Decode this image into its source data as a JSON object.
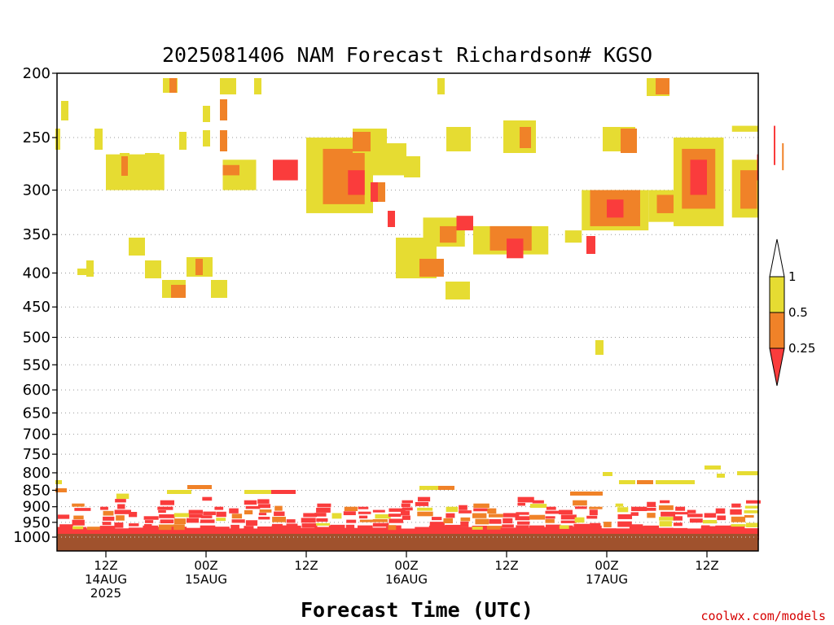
{
  "chart_data": {
    "type": "heatmap",
    "title": "2025081406 NAM Forecast Richardson# KGSO",
    "xlabel": "Forecast Time (UTC)",
    "ylabel": "",
    "y_scale": "pressure (hPa, log-like, inverted)",
    "ylim": [
      1000,
      200
    ],
    "y_ticks": [
      "200",
      "250",
      "300",
      "350",
      "400",
      "450",
      "500",
      "550",
      "600",
      "650",
      "700",
      "750",
      "800",
      "850",
      "900",
      "950",
      "1000"
    ],
    "x_ticks": [
      {
        "time": "2025-08-14T12Z",
        "line1": "12Z",
        "line2": "14AUG",
        "line3": "2025"
      },
      {
        "time": "2025-08-15T00Z",
        "line1": "00Z",
        "line2": "15AUG",
        "line3": ""
      },
      {
        "time": "2025-08-15T12Z",
        "line1": "12Z",
        "line2": "",
        "line3": ""
      },
      {
        "time": "2025-08-16T00Z",
        "line1": "00Z",
        "line2": "16AUG",
        "line3": ""
      },
      {
        "time": "2025-08-16T12Z",
        "line1": "12Z",
        "line2": "",
        "line3": ""
      },
      {
        "time": "2025-08-17T00Z",
        "line1": "00Z",
        "line2": "17AUG",
        "line3": ""
      },
      {
        "time": "2025-08-17T12Z",
        "line1": "12Z",
        "line2": "",
        "line3": ""
      }
    ],
    "grid": "dotted horizontal at pressure ticks",
    "legend": {
      "placement": "right",
      "type": "colorbar",
      "levels": [
        "1",
        "0.5",
        "0.25"
      ],
      "bins": [
        {
          "range": "> 1",
          "color": "#ffffff"
        },
        {
          "range": "0.5 - 1",
          "color": "#e6dc32"
        },
        {
          "range": "0.25 - 0.5",
          "color": "#f08228"
        },
        {
          "range": "< 0.25",
          "color": "#fa3c3c"
        }
      ]
    },
    "ground_color": "#a0522d",
    "colors": {
      "yellow": "#e6dc32",
      "orange": "#f08228",
      "red": "#fa3c3c"
    },
    "regions": [
      {
        "hrs": [
          -18,
          -14.5
        ],
        "p": [
          300,
          265
        ],
        "c": "yellow"
      },
      {
        "hrs": [
          -11,
          -9
        ],
        "p": [
          300,
          270
        ],
        "c": "yellow"
      },
      {
        "hrs": [
          -11,
          -10
        ],
        "p": [
          285,
          275
        ],
        "c": "orange"
      },
      {
        "hrs": [
          -8,
          -6.5
        ],
        "p": [
          290,
          270
        ],
        "c": "red"
      },
      {
        "hrs": [
          -6,
          -2
        ],
        "p": [
          325,
          250
        ],
        "c": "yellow"
      },
      {
        "hrs": [
          -5,
          -2.5
        ],
        "p": [
          315,
          260
        ],
        "c": "orange"
      },
      {
        "hrs": [
          -3.5,
          -2.5
        ],
        "p": [
          305,
          280
        ],
        "c": "red"
      },
      {
        "hrs": [
          -2,
          0
        ],
        "p": [
          285,
          255
        ],
        "c": "yellow"
      },
      {
        "hrs": [
          1,
          3.5
        ],
        "p": [
          365,
          330
        ],
        "c": "yellow"
      },
      {
        "hrs": [
          2,
          3
        ],
        "p": [
          360,
          340
        ],
        "c": "orange"
      },
      {
        "hrs": [
          3,
          4
        ],
        "p": [
          345,
          328
        ],
        "c": "red"
      },
      {
        "hrs": [
          4,
          8.5
        ],
        "p": [
          375,
          340
        ],
        "c": "yellow"
      },
      {
        "hrs": [
          5,
          7.5
        ],
        "p": [
          370,
          340
        ],
        "c": "orange"
      },
      {
        "hrs": [
          6,
          7
        ],
        "p": [
          380,
          355
        ],
        "c": "red"
      },
      {
        "hrs": [
          9.5,
          10.5
        ],
        "p": [
          360,
          345
        ],
        "c": "yellow"
      },
      {
        "hrs": [
          10.5,
          14.5
        ],
        "p": [
          345,
          300
        ],
        "c": "yellow"
      },
      {
        "hrs": [
          11,
          14
        ],
        "p": [
          340,
          300
        ],
        "c": "orange"
      },
      {
        "hrs": [
          12,
          13
        ],
        "p": [
          330,
          310
        ],
        "c": "red"
      },
      {
        "hrs": [
          14.5,
          16
        ],
        "p": [
          335,
          300
        ],
        "c": "yellow"
      },
      {
        "hrs": [
          15,
          16
        ],
        "p": [
          325,
          305
        ],
        "c": "orange"
      },
      {
        "hrs": [
          16,
          19
        ],
        "p": [
          340,
          250
        ],
        "c": "yellow"
      },
      {
        "hrs": [
          16.5,
          18.5
        ],
        "p": [
          320,
          260
        ],
        "c": "orange"
      },
      {
        "hrs": [
          17,
          18
        ],
        "p": [
          305,
          270
        ],
        "c": "red"
      },
      {
        "hrs": [
          19.5,
          21.5
        ],
        "p": [
          330,
          270
        ],
        "c": "yellow"
      },
      {
        "hrs": [
          20,
          21
        ],
        "p": [
          320,
          280
        ],
        "c": "orange"
      },
      {
        "hrs": [
          21,
          22.5
        ],
        "p": [
          290,
          265
        ],
        "c": "red"
      },
      {
        "hrs": [
          22.5,
          24
        ],
        "p": [
          280,
          255
        ],
        "c": "orange"
      },
      {
        "hrs": [
          22,
          24
        ],
        "p": [
          275,
          240
        ],
        "c": "red"
      },
      {
        "hrs": [
          19.5,
          24
        ],
        "p": [
          245,
          240
        ],
        "c": "yellow"
      }
    ],
    "boundary_layer": {
      "hrs": [
        -24,
        24
      ],
      "p_top": [
        925,
        890,
        950,
        900,
        860,
        900,
        930,
        880,
        920,
        910,
        870,
        900,
        905,
        880,
        860,
        875,
        940,
        920,
        890,
        920,
        900,
        880,
        910,
        905,
        880,
        870,
        910,
        900,
        895,
        890,
        905,
        920,
        870,
        880,
        900,
        910,
        880,
        900,
        915,
        890,
        900,
        885,
        880,
        900,
        910,
        920,
        905,
        890,
        880
      ],
      "c": "mixed"
    }
  }
}
